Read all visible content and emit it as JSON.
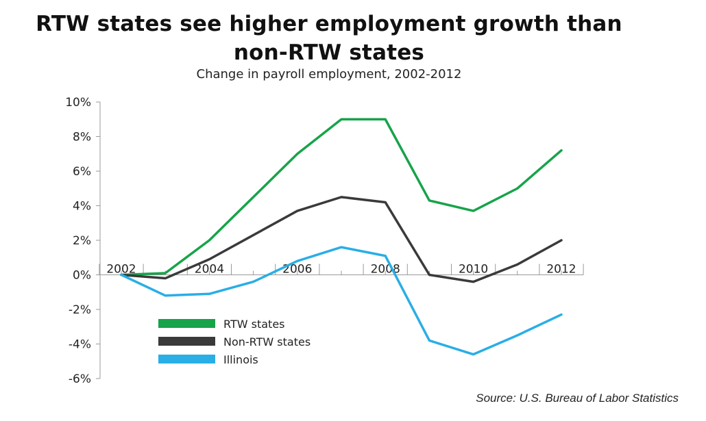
{
  "title_line1": "RTW states see higher employment growth than",
  "title_line2": "non-RTW states",
  "subtitle": "Change in payroll employment, 2002-2012",
  "source": "Source: U.S. Bureau of Labor Statistics",
  "chart_data": {
    "type": "line",
    "x": [
      2002,
      2003,
      2004,
      2005,
      2006,
      2007,
      2008,
      2009,
      2010,
      2011,
      2012
    ],
    "x_tick_labels": [
      "2002",
      "2004",
      "2006",
      "2008",
      "2010",
      "2012"
    ],
    "y_tick_labels": [
      "10%",
      "8%",
      "6%",
      "4%",
      "2%",
      "0%",
      "-2%",
      "-4%",
      "-6%"
    ],
    "ylim": [
      -6,
      10
    ],
    "grid": false,
    "legend_position": "bottom-left",
    "series": [
      {
        "name": "RTW states",
        "color": "#17a34a",
        "values": [
          0.0,
          0.1,
          2.0,
          4.5,
          7.0,
          9.0,
          9.0,
          4.3,
          3.7,
          5.0,
          7.2
        ]
      },
      {
        "name": "Non-RTW states",
        "color": "#3a3a3a",
        "values": [
          0.0,
          -0.2,
          0.9,
          2.3,
          3.7,
          4.5,
          4.2,
          0.0,
          -0.4,
          0.6,
          2.0
        ]
      },
      {
        "name": "Illinois",
        "color": "#29aee6",
        "values": [
          0.0,
          -1.2,
          -1.1,
          -0.4,
          0.8,
          1.6,
          1.1,
          -3.8,
          -4.6,
          -3.5,
          -2.3
        ]
      }
    ]
  }
}
